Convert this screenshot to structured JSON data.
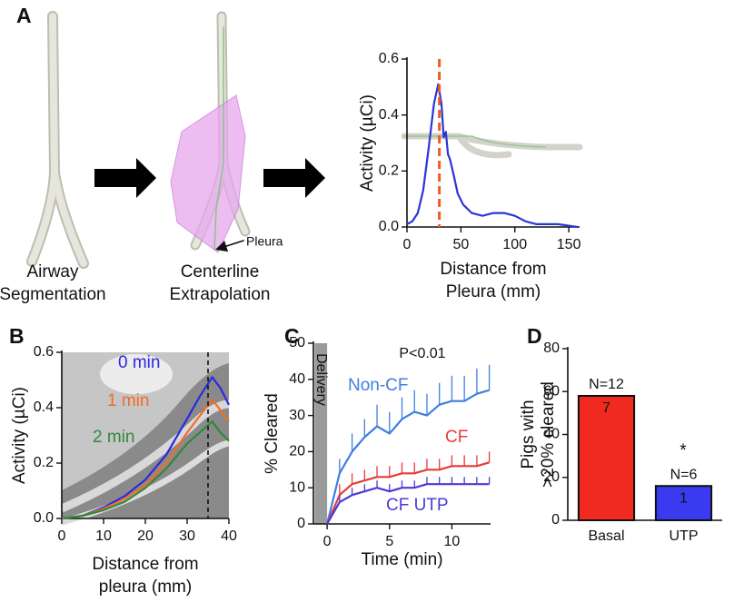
{
  "diagram": {
    "panel_label": "A",
    "captions": [
      [
        "Airway",
        "Segmentation"
      ],
      [
        "Centerline",
        "Extrapolation"
      ]
    ],
    "pointer": "Pleura"
  },
  "chart_data": [
    {
      "type": "line",
      "xlabel": [
        "Distance from",
        "Pleura (mm)"
      ],
      "ylabel": "Activity (µCi)",
      "x": [
        0,
        5,
        10,
        15,
        20,
        25,
        29,
        32,
        34,
        36,
        38,
        40,
        43,
        47,
        52,
        60,
        70,
        80,
        90,
        100,
        110,
        120,
        140,
        158
      ],
      "series": [
        {
          "color": "#2a35d8",
          "values": [
            0.01,
            0.02,
            0.05,
            0.13,
            0.28,
            0.44,
            0.51,
            0.44,
            0.32,
            0.34,
            0.26,
            0.24,
            0.19,
            0.12,
            0.08,
            0.05,
            0.04,
            0.05,
            0.05,
            0.04,
            0.02,
            0.01,
            0.01,
            0.0
          ]
        }
      ],
      "xlim": [
        0,
        160
      ],
      "xticks": [
        0,
        50,
        100,
        150
      ],
      "ylim": [
        0,
        0.6
      ],
      "yticks": [
        {
          "value": 0,
          "label": "0.0"
        },
        0.2,
        0.4,
        0.6
      ],
      "vline": {
        "x": 30,
        "color": "#ef5a24"
      }
    },
    {
      "type": "line",
      "panel_label": "B",
      "xlabel": [
        "Distance from",
        "pleura (mm)"
      ],
      "ylabel": "Activity (µCi)",
      "x": [
        0,
        5,
        10,
        15,
        20,
        25,
        30,
        33,
        36,
        38,
        40
      ],
      "series": [
        {
          "name": "0 min",
          "color": "#2a2ae0",
          "values": [
            0,
            0.01,
            0.04,
            0.08,
            0.14,
            0.23,
            0.36,
            0.44,
            0.51,
            0.47,
            0.41
          ]
        },
        {
          "name": "1 min",
          "color": "#f26b2a",
          "values": [
            0,
            0.01,
            0.035,
            0.07,
            0.12,
            0.2,
            0.31,
            0.37,
            0.43,
            0.39,
            0.35
          ]
        },
        {
          "name": "2 min",
          "color": "#2f8a3a",
          "values": [
            0,
            0.01,
            0.03,
            0.06,
            0.11,
            0.18,
            0.27,
            0.31,
            0.35,
            0.31,
            0.28
          ]
        }
      ],
      "xlim": [
        0,
        40
      ],
      "xticks": [
        0,
        10,
        20,
        30,
        40
      ],
      "ylim": [
        0,
        0.6
      ],
      "yticks": [
        {
          "value": 0,
          "label": "0.0"
        },
        0.2,
        0.4,
        0.6
      ],
      "vline": {
        "x": 35,
        "color": "#111111"
      }
    },
    {
      "type": "line",
      "panel_label": "C",
      "xlabel": [
        "Time (min)"
      ],
      "ylabel": "% Cleared",
      "annotation": "P<0.01",
      "band": {
        "x": [
          -1,
          0
        ],
        "label": "Delivery",
        "color": "#9a9a9a"
      },
      "x": [
        0,
        1,
        2,
        3,
        4,
        5,
        6,
        7,
        8,
        9,
        10,
        11,
        12,
        13
      ],
      "series": [
        {
          "name": "Non-CF",
          "color": "#3f7fe0",
          "values": [
            0,
            14,
            20,
            24,
            27,
            25,
            29,
            31,
            30,
            33,
            34,
            34,
            36,
            37
          ],
          "errors": [
            0,
            4,
            5,
            5,
            6,
            6,
            6,
            6,
            6,
            6,
            7,
            7,
            7,
            7
          ]
        },
        {
          "name": "CF",
          "color": "#e83a3a",
          "values": [
            0,
            8,
            11,
            12,
            13,
            13,
            14,
            14,
            15,
            15,
            16,
            16,
            16,
            17
          ],
          "errors": [
            0,
            3,
            3,
            3,
            3,
            3,
            3,
            3,
            3,
            3,
            3,
            3,
            3,
            3
          ]
        },
        {
          "name": "CF UTP",
          "color": "#4b3bd6",
          "values": [
            0,
            6,
            8,
            9,
            10,
            9,
            10,
            10,
            11,
            11,
            11,
            11,
            11,
            11
          ],
          "errors": [
            0,
            2,
            2,
            2,
            2,
            2,
            2,
            2,
            2,
            2,
            2,
            2,
            2,
            2
          ]
        }
      ],
      "xlim": [
        -1.1,
        13.1
      ],
      "xticks": [
        0,
        5,
        10
      ],
      "ylim": [
        0,
        50
      ],
      "yticks": [
        0,
        10,
        20,
        30,
        40,
        50
      ]
    },
    {
      "type": "bar",
      "panel_label": "D",
      "ylabel": [
        "Pigs with",
        ">20% cleared"
      ],
      "categories": [
        "Basal",
        "UTP"
      ],
      "values": [
        58,
        16
      ],
      "colors": [
        "#f02a1e",
        "#3a3af0"
      ],
      "n_labels": [
        "N=12",
        "N=6"
      ],
      "inside_labels": [
        "7",
        "1"
      ],
      "annotation": "*",
      "ylim": [
        0,
        80
      ],
      "yticks": [
        0,
        20,
        40,
        60,
        80
      ]
    }
  ]
}
